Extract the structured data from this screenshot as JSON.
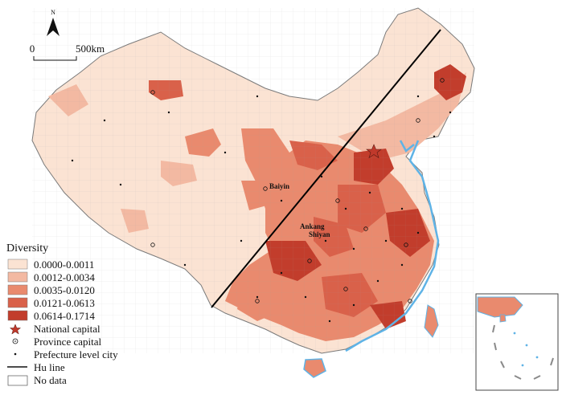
{
  "north_arrow": {
    "label": "N"
  },
  "scale_bar": {
    "start": "0",
    "end": "500km"
  },
  "place_labels": [
    "Baiyin",
    "Ankang",
    "Shiyan"
  ],
  "legend": {
    "title": "Diversity",
    "classes": [
      {
        "label": "0.0000-0.0011",
        "color": "#fbe3d3"
      },
      {
        "label": "0.0012-0.0034",
        "color": "#f3b9a2"
      },
      {
        "label": "0.0035-0.0120",
        "color": "#e98a6e"
      },
      {
        "label": "0.0121-0.0613",
        "color": "#d9614a"
      },
      {
        "label": "0.0614-0.1714",
        "color": "#c23d2c"
      }
    ],
    "symbols": [
      {
        "label": "National capital",
        "icon": "star-icon",
        "color": "#c0392b"
      },
      {
        "label": "Province capital",
        "icon": "circle-dot-icon"
      },
      {
        "label": "Prefecture level city",
        "icon": "dot-icon"
      },
      {
        "label": "Hu line",
        "icon": "line-icon"
      },
      {
        "label": "No data",
        "icon": "empty-box-icon"
      }
    ]
  },
  "colors": {
    "water": "#5fb3e6",
    "border": "#8a8a8a",
    "hu_line": "#000000"
  }
}
